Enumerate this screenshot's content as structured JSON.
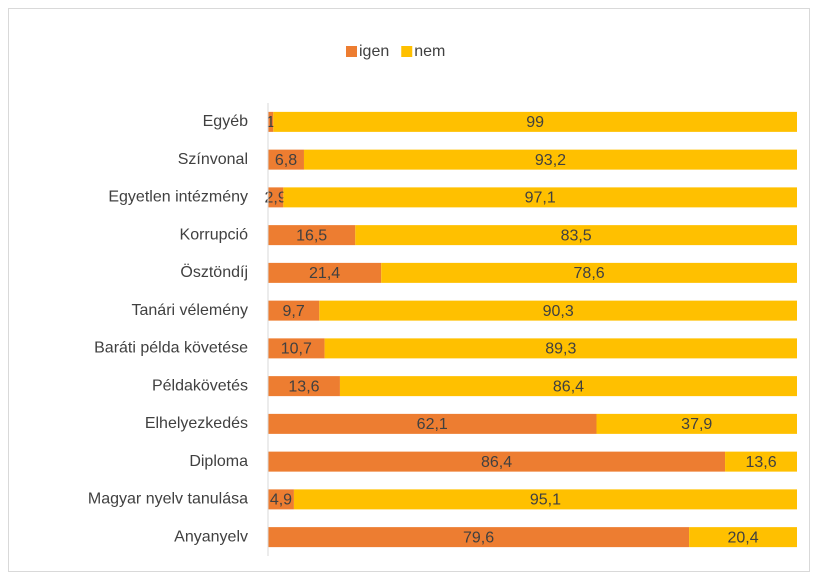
{
  "chart_data": {
    "type": "stacked-bar",
    "orientation": "horizontal",
    "categories": [
      "Egyéb",
      "Színvonal",
      "Egyetlen intézmény",
      "Korrupció",
      "Ösztöndíj",
      "Tanári vélemény",
      "Baráti példa követése",
      "Példakövetés",
      "Elhelyezkedés",
      "Diploma",
      "Magyar nyelv tanulása",
      "Anyanyelv"
    ],
    "series": [
      {
        "name": "igen",
        "color": "#ED7D31",
        "values": [
          1,
          6.8,
          2.9,
          16.5,
          21.4,
          9.7,
          10.7,
          13.6,
          62.1,
          86.4,
          4.9,
          79.6
        ],
        "value_labels": [
          "1",
          "6,8",
          "2,9",
          "16,5",
          "21,4",
          "9,7",
          "10,7",
          "13,6",
          "62,1",
          "86,4",
          "4,9",
          "79,6"
        ]
      },
      {
        "name": "nem",
        "color": "#FFC000",
        "values": [
          99,
          93.2,
          97.1,
          83.5,
          78.6,
          90.3,
          89.3,
          86.4,
          37.9,
          13.6,
          95.1,
          20.4
        ],
        "value_labels": [
          "99",
          "93,2",
          "97,1",
          "83,5",
          "78,6",
          "90,3",
          "89,3",
          "86,4",
          "37,9",
          "13,6",
          "95,1",
          "20,4"
        ]
      }
    ],
    "xlim": [
      0,
      100
    ],
    "legend": "top"
  }
}
